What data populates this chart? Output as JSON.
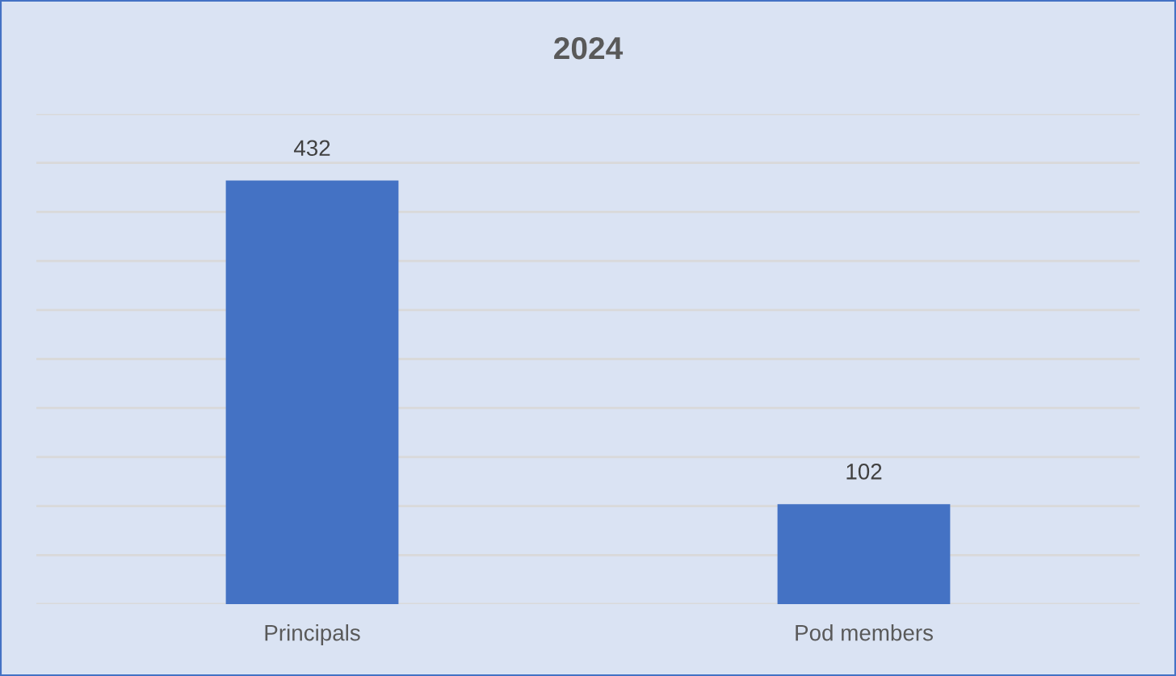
{
  "chart_data": {
    "type": "bar",
    "title": "2024",
    "categories": [
      "Principals",
      "Pod members"
    ],
    "values": [
      432,
      102
    ],
    "color": "#4472c4",
    "ylim": [
      0,
      500
    ],
    "yticks": [
      {
        "value": 0,
        "label": null
      },
      {
        "value": 50,
        "label": null
      },
      {
        "value": 100,
        "label": null
      },
      {
        "value": 150,
        "label": null
      },
      {
        "value": 200,
        "label": null
      },
      {
        "value": 250,
        "label": null
      },
      {
        "value": 300,
        "label": null
      },
      {
        "value": 350,
        "label": null
      },
      {
        "value": 400,
        "label": null
      },
      {
        "value": 450,
        "label": null
      },
      {
        "value": 500,
        "label": null
      }
    ],
    "tick_labels": "x",
    "grid": "y",
    "data_labels": true,
    "legend": false
  }
}
